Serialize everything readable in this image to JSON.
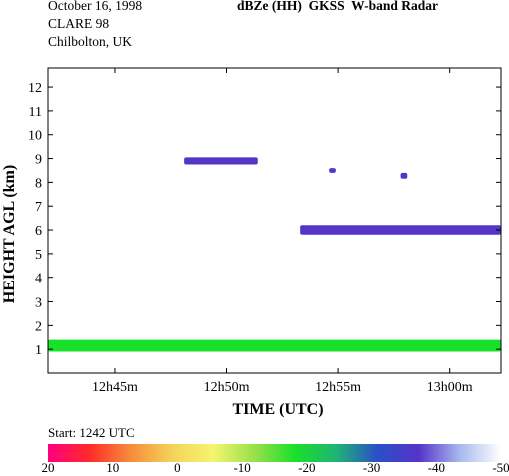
{
  "header": {
    "date": "October 16, 1998",
    "campaign": "CLARE 98",
    "location": "Chilbolton, UK",
    "product_title": "dBZe (HH)  GKSS  W-band Radar"
  },
  "start_label": "Start: 1242 UTC",
  "chart_data": {
    "type": "heatmap",
    "title": "dBZe (HH)  GKSS  W-band Radar",
    "xlabel": "TIME (UTC)",
    "ylabel": "HEIGHT AGL (km)",
    "x_ticks": [
      {
        "minutes": 3,
        "label": "12h45m"
      },
      {
        "minutes": 8,
        "label": "12h50m"
      },
      {
        "minutes": 13,
        "label": "12h55m"
      },
      {
        "minutes": 18,
        "label": "13h00m"
      }
    ],
    "xlim_minutes_after_1242": [
      0,
      20.3
    ],
    "y_ticks": [
      1,
      2,
      3,
      4,
      5,
      6,
      7,
      8,
      9,
      10,
      11,
      12
    ],
    "ylim_km": [
      0,
      12.8
    ],
    "colorbar": {
      "unit": "dBZe",
      "range": [
        20,
        -50
      ],
      "ticks": [
        "20",
        "10",
        "0",
        "-10",
        "-20",
        "-30",
        "-40",
        "-50"
      ],
      "colors": [
        "#ff0080",
        "#ff2a2a",
        "#f58c3a",
        "#f5d25a",
        "#f5f56e",
        "#9be04b",
        "#19e02a",
        "#1fb474",
        "#2b4fc8",
        "#5534c8",
        "#a8b8ee",
        "#ffffff"
      ]
    },
    "echo_layers": [
      {
        "name": "boundary layer echo",
        "t_start": 0,
        "t_end": 20.3,
        "base_km": 0.9,
        "top_km": 1.4,
        "color": "#19e02a"
      },
      {
        "name": "thin upper layer",
        "t_start": 6.1,
        "t_end": 9.4,
        "base_km": 8.75,
        "top_km": 9.05,
        "color": "#5534c8"
      },
      {
        "name": "mid-level layer",
        "t_start": 11.3,
        "t_end": 20.3,
        "base_km": 5.8,
        "top_km": 6.2,
        "color": "#5534c8"
      },
      {
        "name": "small echo",
        "t_start": 12.6,
        "t_end": 12.9,
        "base_km": 8.4,
        "top_km": 8.6,
        "color": "#5534c8"
      },
      {
        "name": "small echo",
        "t_start": 15.8,
        "t_end": 16.1,
        "base_km": 8.15,
        "top_km": 8.4,
        "color": "#5534c8"
      }
    ]
  }
}
